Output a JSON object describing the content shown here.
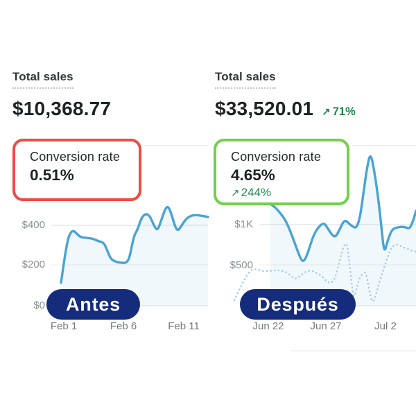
{
  "colors": {
    "highlight_red": "#ef4b42",
    "highlight_green": "#72d04c",
    "positive_green": "#1f8a4d",
    "badge_navy": "#152b7c",
    "line_blue": "#49a3d5",
    "dotted_blue": "#a5cce4"
  },
  "before": {
    "badge": "Antes",
    "total_sales": {
      "title": "Total sales",
      "value": "$10,368.77"
    },
    "conversion": {
      "title": "Conversion rate",
      "value": "0.51%"
    }
  },
  "after": {
    "badge": "Después",
    "total_sales": {
      "title": "Total sales",
      "value": "$33,520.01",
      "delta_arrow": "↗",
      "delta": "71%"
    },
    "conversion": {
      "title": "Conversion rate",
      "value": "4.65%",
      "delta_arrow": "↗",
      "delta": "244%"
    }
  },
  "chart_data": [
    {
      "type": "area",
      "title": "Total sales (before)",
      "x_ticks": [
        "Feb 1",
        "Feb 6",
        "Feb 11"
      ],
      "y_ticks": [
        {
          "label": "$400",
          "value": 400
        },
        {
          "label": "$200",
          "value": 200
        },
        {
          "label": "$0",
          "value": 0
        }
      ],
      "y_range": [
        0,
        830
      ],
      "grid": true,
      "series": [
        {
          "name": "current",
          "style": "solid",
          "points": [
            [
              0.243,
              115
            ],
            [
              0.261,
              239
            ],
            [
              0.275,
              315
            ],
            [
              0.286,
              356
            ],
            [
              0.304,
              377
            ],
            [
              0.321,
              363
            ],
            [
              0.343,
              342
            ],
            [
              0.371,
              339
            ],
            [
              0.404,
              336
            ],
            [
              0.436,
              322
            ],
            [
              0.464,
              315
            ],
            [
              0.482,
              273
            ],
            [
              0.5,
              232
            ],
            [
              0.529,
              218
            ],
            [
              0.557,
              214
            ],
            [
              0.579,
              214
            ],
            [
              0.596,
              239
            ],
            [
              0.618,
              349
            ],
            [
              0.636,
              377
            ],
            [
              0.657,
              439
            ],
            [
              0.679,
              460
            ],
            [
              0.7,
              450
            ],
            [
              0.721,
              401
            ],
            [
              0.739,
              374
            ],
            [
              0.757,
              419
            ],
            [
              0.779,
              484
            ],
            [
              0.796,
              498
            ],
            [
              0.814,
              450
            ],
            [
              0.832,
              391
            ],
            [
              0.846,
              374
            ],
            [
              0.864,
              401
            ],
            [
              0.886,
              432
            ],
            [
              0.911,
              450
            ],
            [
              0.939,
              453
            ],
            [
              0.964,
              450
            ],
            [
              1,
              443
            ]
          ]
        }
      ]
    },
    {
      "type": "area",
      "title": "Total sales (after)",
      "x_ticks": [
        "Jun 22",
        "Jun 27",
        "Jul 2"
      ],
      "y_ticks": [
        {
          "label": "$1K",
          "value": 1000
        },
        {
          "label": "$500",
          "value": 500
        },
        {
          "label": "$0",
          "value": 0
        }
      ],
      "y_range": [
        0,
        2150
      ],
      "grid": true,
      "series": [
        {
          "name": "current",
          "style": "solid",
          "points": [
            [
              0.3,
              1267
            ],
            [
              0.32,
              1233
            ],
            [
              0.35,
              1147
            ],
            [
              0.377,
              1043
            ],
            [
              0.407,
              853
            ],
            [
              0.433,
              664
            ],
            [
              0.453,
              543
            ],
            [
              0.47,
              586
            ],
            [
              0.49,
              741
            ],
            [
              0.507,
              871
            ],
            [
              0.523,
              948
            ],
            [
              0.543,
              1009
            ],
            [
              0.56,
              1026
            ],
            [
              0.577,
              957
            ],
            [
              0.597,
              879
            ],
            [
              0.613,
              853
            ],
            [
              0.633,
              948
            ],
            [
              0.65,
              1043
            ],
            [
              0.663,
              1060
            ],
            [
              0.68,
              1017
            ],
            [
              0.697,
              983
            ],
            [
              0.713,
              966
            ],
            [
              0.73,
              1086
            ],
            [
              0.747,
              1390
            ],
            [
              0.765,
              1730
            ],
            [
              0.782,
              1910
            ],
            [
              0.802,
              1640
            ],
            [
              0.82,
              1302
            ],
            [
              0.833,
              1000
            ],
            [
              0.847,
              647
            ],
            [
              0.863,
              802
            ],
            [
              0.877,
              905
            ],
            [
              0.89,
              957
            ],
            [
              0.91,
              974
            ],
            [
              0.933,
              983
            ],
            [
              0.953,
              974
            ],
            [
              0.97,
              957
            ],
            [
              0.987,
              1060
            ],
            [
              1,
              1181
            ]
          ]
        },
        {
          "name": "previous",
          "style": "dotted",
          "points": [
            [
              0.127,
              69
            ],
            [
              0.153,
              216
            ],
            [
              0.18,
              353
            ],
            [
              0.207,
              448
            ],
            [
              0.233,
              457
            ],
            [
              0.26,
              431
            ],
            [
              0.29,
              431
            ],
            [
              0.32,
              440
            ],
            [
              0.347,
              440
            ],
            [
              0.373,
              422
            ],
            [
              0.397,
              379
            ],
            [
              0.42,
              328
            ],
            [
              0.443,
              371
            ],
            [
              0.467,
              422
            ],
            [
              0.493,
              440
            ],
            [
              0.52,
              414
            ],
            [
              0.547,
              371
            ],
            [
              0.57,
              302
            ],
            [
              0.593,
              276
            ],
            [
              0.613,
              353
            ],
            [
              0.633,
              569
            ],
            [
              0.65,
              724
            ],
            [
              0.667,
              802
            ],
            [
              0.68,
              526
            ],
            [
              0.693,
              224
            ],
            [
              0.703,
              86
            ],
            [
              0.717,
              250
            ],
            [
              0.73,
              353
            ],
            [
              0.747,
              405
            ],
            [
              0.76,
              414
            ],
            [
              0.773,
              224
            ],
            [
              0.787,
              43
            ],
            [
              0.8,
              78
            ],
            [
              0.817,
              224
            ],
            [
              0.833,
              371
            ],
            [
              0.85,
              500
            ],
            [
              0.867,
              629
            ],
            [
              0.883,
              724
            ],
            [
              0.9,
              767
            ],
            [
              0.92,
              750
            ],
            [
              0.94,
              724
            ],
            [
              0.963,
              707
            ],
            [
              0.983,
              681
            ],
            [
              1,
              672
            ]
          ]
        }
      ]
    }
  ]
}
